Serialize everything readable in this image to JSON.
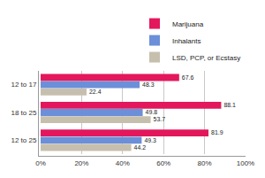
{
  "chart_data": {
    "type": "bar",
    "orientation": "horizontal",
    "categories": [
      "12 to 17",
      "18 to 25",
      "12 to 25"
    ],
    "series": [
      {
        "name": "Marijuana",
        "color": "#e3175c",
        "values": [
          67.6,
          88.1,
          81.9
        ]
      },
      {
        "name": "Inhalants",
        "color": "#6b8fd8",
        "values": [
          48.3,
          49.8,
          49.3
        ]
      },
      {
        "name": "LSD, PCP, or Ecstasy",
        "color": "#c7bfae",
        "values": [
          22.4,
          53.7,
          44.2
        ]
      }
    ],
    "xlim": [
      0,
      100
    ],
    "xticks": [
      {
        "value": 0,
        "label": "0%"
      },
      {
        "value": 20,
        "label": "20%"
      },
      {
        "value": 40,
        "label": "40%"
      },
      {
        "value": 60,
        "label": "60%"
      },
      {
        "value": 80,
        "label": "80%"
      },
      {
        "value": 100,
        "label": "100%"
      }
    ],
    "grid": true,
    "legend": "upper right",
    "data_labels": true
  }
}
